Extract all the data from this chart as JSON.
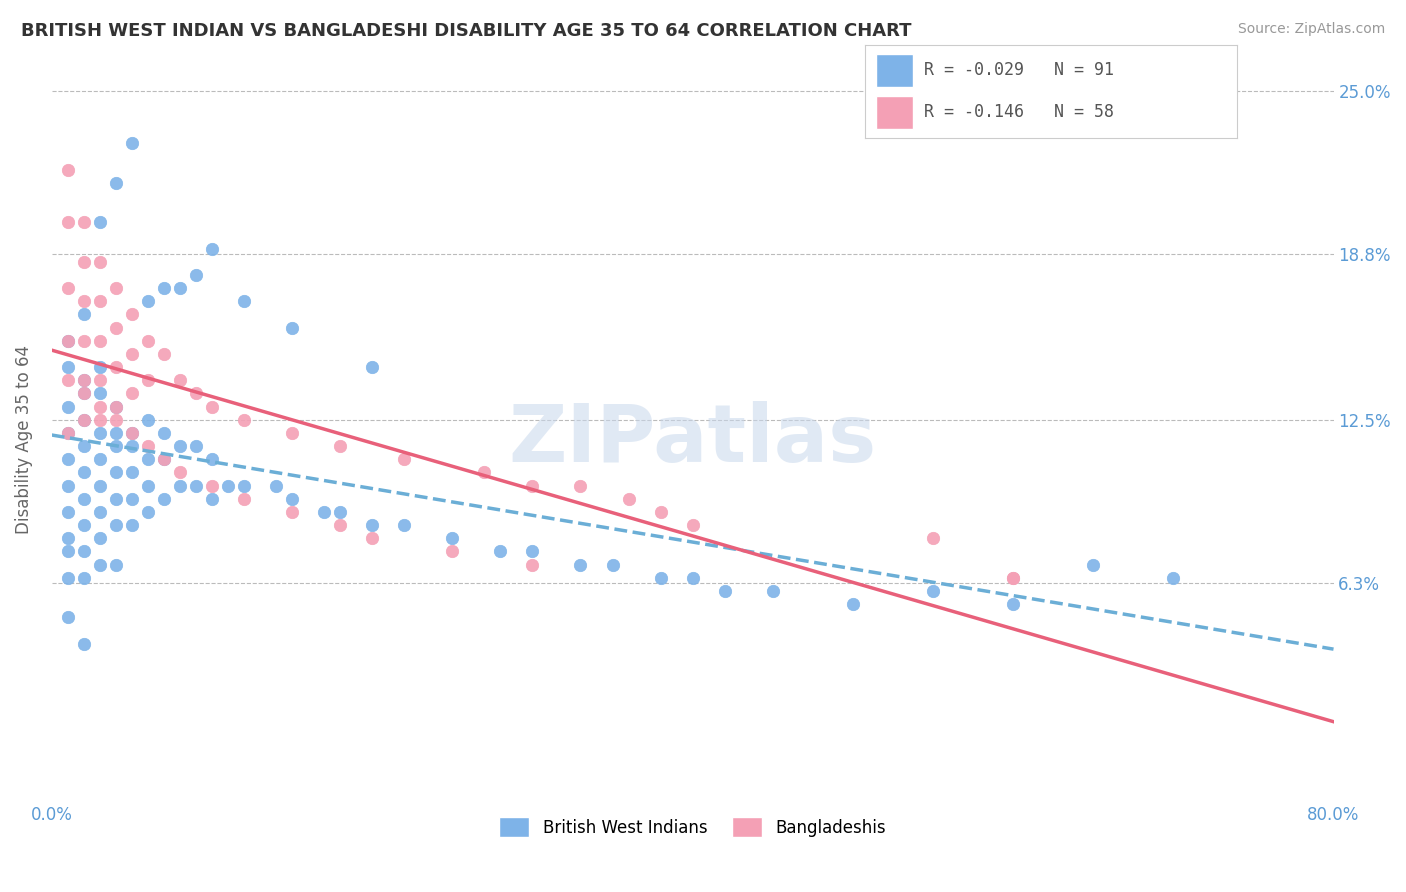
{
  "title": "BRITISH WEST INDIAN VS BANGLADESHI DISABILITY AGE 35 TO 64 CORRELATION CHART",
  "source": "Source: ZipAtlas.com",
  "ylabel": "Disability Age 35 to 64",
  "xmin": 0.0,
  "xmax": 0.8,
  "ymin": 0.0,
  "ymax": 0.25,
  "yticks": [
    0.063,
    0.125,
    0.188,
    0.25
  ],
  "ytick_labels": [
    "6.3%",
    "12.5%",
    "18.8%",
    "25.0%"
  ],
  "blue_color": "#7EB3E8",
  "pink_color": "#F4A0B5",
  "blue_line_color": "#6BAED6",
  "pink_line_color": "#E8607A",
  "blue_r": -0.029,
  "blue_n": 91,
  "pink_r": -0.146,
  "pink_n": 58,
  "blue_dots_x": [
    0.01,
    0.01,
    0.01,
    0.01,
    0.01,
    0.01,
    0.01,
    0.01,
    0.01,
    0.01,
    0.02,
    0.02,
    0.02,
    0.02,
    0.02,
    0.02,
    0.02,
    0.02,
    0.02,
    0.02,
    0.03,
    0.03,
    0.03,
    0.03,
    0.03,
    0.03,
    0.03,
    0.03,
    0.04,
    0.04,
    0.04,
    0.04,
    0.04,
    0.04,
    0.04,
    0.05,
    0.05,
    0.05,
    0.05,
    0.05,
    0.06,
    0.06,
    0.06,
    0.06,
    0.07,
    0.07,
    0.07,
    0.08,
    0.08,
    0.09,
    0.09,
    0.1,
    0.1,
    0.11,
    0.12,
    0.14,
    0.15,
    0.17,
    0.18,
    0.2,
    0.22,
    0.25,
    0.28,
    0.3,
    0.33,
    0.35,
    0.38,
    0.4,
    0.42,
    0.45,
    0.5,
    0.55,
    0.6,
    0.02,
    0.01,
    0.03,
    0.04,
    0.05,
    0.06,
    0.07,
    0.08,
    0.09,
    0.1,
    0.12,
    0.15,
    0.2,
    0.65,
    0.7
  ],
  "blue_dots_y": [
    0.13,
    0.145,
    0.12,
    0.11,
    0.1,
    0.09,
    0.08,
    0.075,
    0.065,
    0.05,
    0.14,
    0.135,
    0.125,
    0.115,
    0.105,
    0.095,
    0.085,
    0.075,
    0.065,
    0.04,
    0.145,
    0.135,
    0.12,
    0.11,
    0.1,
    0.09,
    0.08,
    0.07,
    0.13,
    0.12,
    0.115,
    0.105,
    0.095,
    0.085,
    0.07,
    0.12,
    0.115,
    0.105,
    0.095,
    0.085,
    0.125,
    0.11,
    0.1,
    0.09,
    0.12,
    0.11,
    0.095,
    0.115,
    0.1,
    0.115,
    0.1,
    0.11,
    0.095,
    0.1,
    0.1,
    0.1,
    0.095,
    0.09,
    0.09,
    0.085,
    0.085,
    0.08,
    0.075,
    0.075,
    0.07,
    0.07,
    0.065,
    0.065,
    0.06,
    0.06,
    0.055,
    0.06,
    0.055,
    0.165,
    0.155,
    0.2,
    0.215,
    0.23,
    0.17,
    0.175,
    0.175,
    0.18,
    0.19,
    0.17,
    0.16,
    0.145,
    0.07,
    0.065
  ],
  "pink_dots_x": [
    0.01,
    0.01,
    0.01,
    0.01,
    0.01,
    0.01,
    0.02,
    0.02,
    0.02,
    0.02,
    0.02,
    0.02,
    0.03,
    0.03,
    0.03,
    0.03,
    0.03,
    0.04,
    0.04,
    0.04,
    0.04,
    0.05,
    0.05,
    0.05,
    0.06,
    0.06,
    0.07,
    0.08,
    0.09,
    0.1,
    0.12,
    0.15,
    0.18,
    0.22,
    0.27,
    0.3,
    0.33,
    0.36,
    0.38,
    0.4,
    0.55,
    0.6,
    0.02,
    0.03,
    0.04,
    0.05,
    0.06,
    0.07,
    0.08,
    0.1,
    0.12,
    0.15,
    0.18,
    0.2,
    0.25,
    0.3,
    0.6
  ],
  "pink_dots_y": [
    0.22,
    0.2,
    0.175,
    0.155,
    0.14,
    0.12,
    0.2,
    0.185,
    0.17,
    0.155,
    0.14,
    0.125,
    0.185,
    0.17,
    0.155,
    0.14,
    0.125,
    0.175,
    0.16,
    0.145,
    0.13,
    0.165,
    0.15,
    0.135,
    0.155,
    0.14,
    0.15,
    0.14,
    0.135,
    0.13,
    0.125,
    0.12,
    0.115,
    0.11,
    0.105,
    0.1,
    0.1,
    0.095,
    0.09,
    0.085,
    0.08,
    0.065,
    0.135,
    0.13,
    0.125,
    0.12,
    0.115,
    0.11,
    0.105,
    0.1,
    0.095,
    0.09,
    0.085,
    0.08,
    0.075,
    0.07,
    0.065
  ]
}
